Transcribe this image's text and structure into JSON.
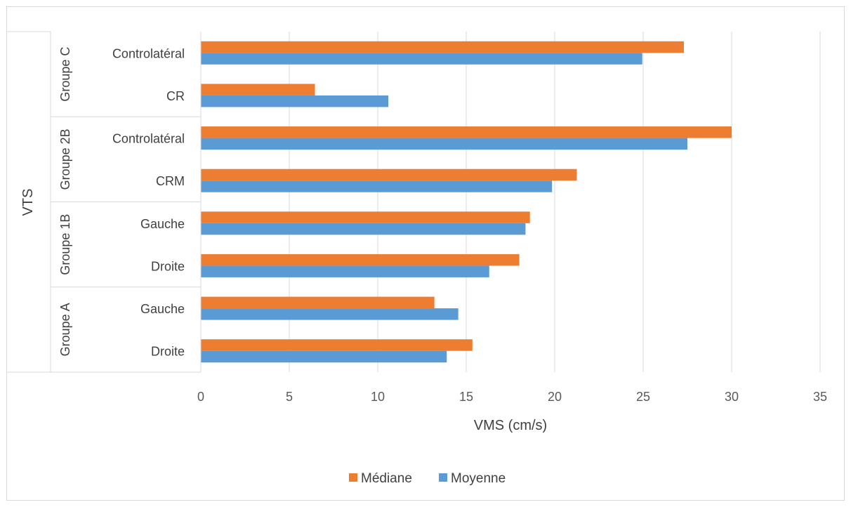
{
  "chart_data": {
    "type": "bar",
    "orientation": "horizontal",
    "group_axis_label": "VTS",
    "xlabel": "VMS (cm/s)",
    "xlim": [
      0,
      35
    ],
    "xticks": [
      0,
      5,
      10,
      15,
      20,
      25,
      30,
      35
    ],
    "grid": true,
    "legend_position": "bottom",
    "groups": [
      {
        "name": "Groupe A",
        "categories": [
          "Droite",
          "Gauche"
        ]
      },
      {
        "name": "Groupe 1B",
        "categories": [
          "Droite",
          "Gauche"
        ]
      },
      {
        "name": "Groupe 2B",
        "categories": [
          "CRM",
          "Controlatéral"
        ]
      },
      {
        "name": "Groupe C",
        "categories": [
          "CR",
          "Controlatéral"
        ]
      }
    ],
    "series": [
      {
        "name": "Médiane",
        "color": "#ed7d31",
        "values": [
          15.35,
          13.2,
          18.0,
          18.6,
          21.25,
          30.0,
          6.45,
          27.3
        ]
      },
      {
        "name": "Moyenne",
        "color": "#5b9bd5",
        "values": [
          13.9,
          14.55,
          16.3,
          18.35,
          19.85,
          27.5,
          10.6,
          24.95
        ]
      }
    ]
  }
}
